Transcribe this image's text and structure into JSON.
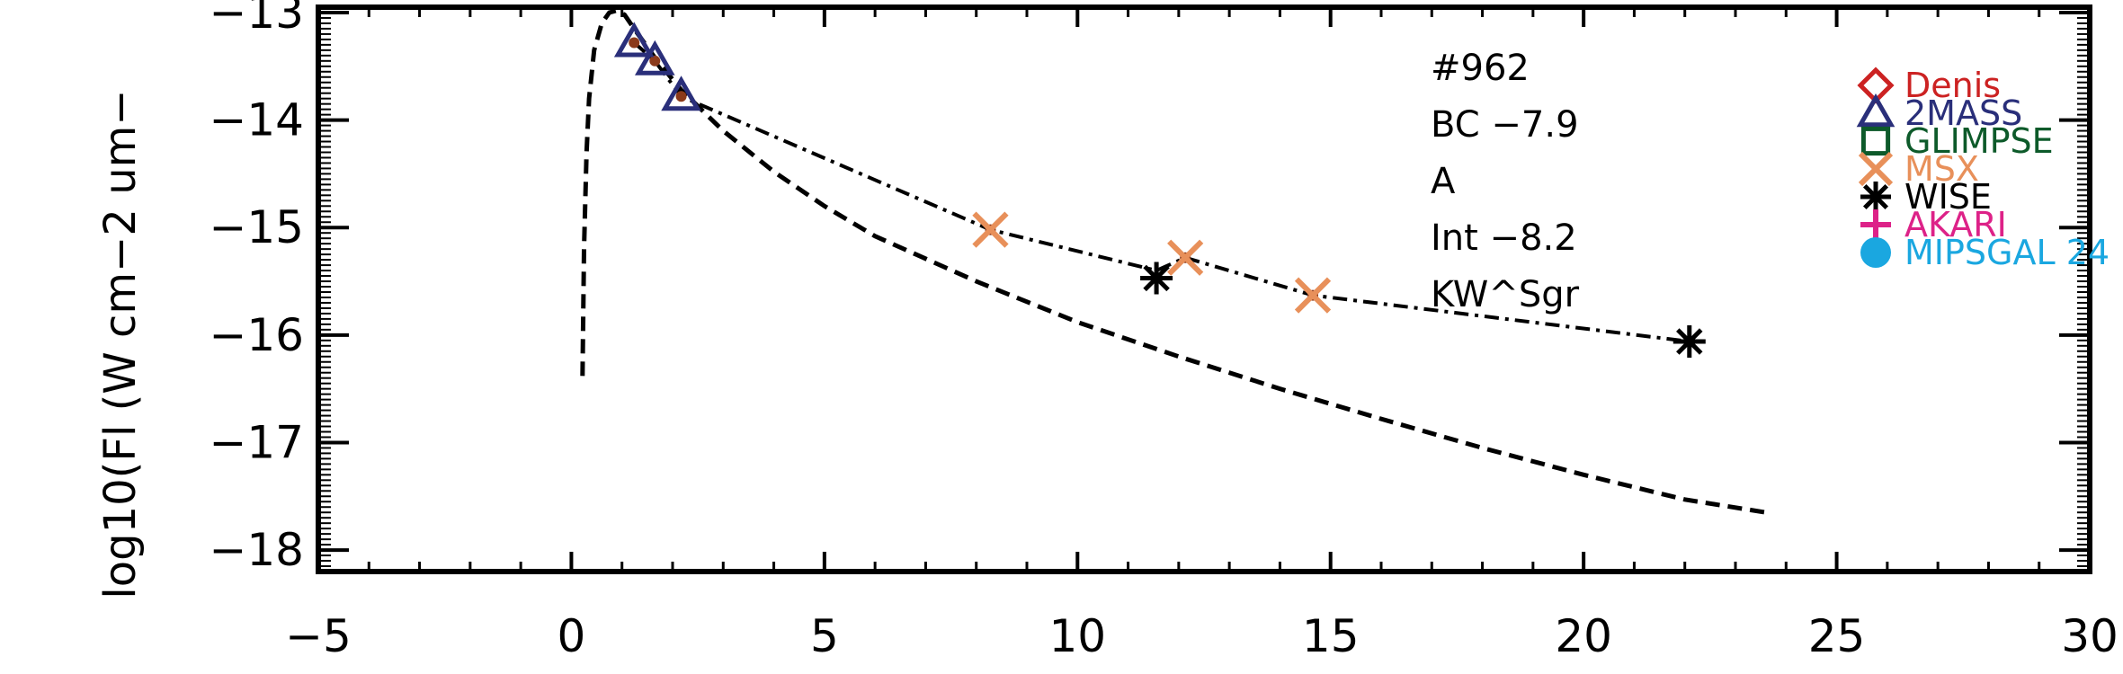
{
  "chart_data": {
    "type": "scatter",
    "ylabel": "log10(Fl (W cm−2 um−",
    "xlabel": "",
    "xlim": [
      -5,
      30
    ],
    "ylim": [
      -18.2,
      -12.95
    ],
    "xticks": [
      "−5",
      "0",
      "5",
      "10",
      "15",
      "20",
      "25",
      "30"
    ],
    "xtick_values": [
      -5,
      0,
      5,
      10,
      15,
      20,
      25,
      30
    ],
    "yticks": [
      "−13",
      "−14",
      "−15",
      "−16",
      "−17",
      "−18"
    ],
    "ytick_values": [
      -13,
      -14,
      -15,
      -16,
      -17,
      -18
    ],
    "annotations": [
      "#962",
      "BC −7.9",
      "A",
      "Int −8.2",
      "KW^Sgr"
    ],
    "legend": {
      "placement": "right",
      "entries": [
        {
          "label": "Denis",
          "marker": "diamond",
          "color": "#cc2222"
        },
        {
          "label": "2MASS",
          "marker": "triangle",
          "color": "#2a2f7a"
        },
        {
          "label": "GLIMPSE",
          "marker": "square",
          "color": "#0d5a2a"
        },
        {
          "label": "MSX",
          "marker": "x",
          "color": "#e8905a"
        },
        {
          "label": "WISE",
          "marker": "asterisk",
          "color": "#000000"
        },
        {
          "label": "AKARI",
          "marker": "plus",
          "color": "#dd2288"
        },
        {
          "label": "MIPSGAL 24",
          "marker": "circle",
          "color": "#1aa7e0"
        }
      ]
    },
    "series": [
      {
        "name": "2MASS",
        "marker": "triangle",
        "color": "#2a2f7a",
        "x": [
          1.24,
          1.65,
          2.17
        ],
        "y": [
          -13.28,
          -13.45,
          -13.78
        ]
      },
      {
        "name": "MSX",
        "marker": "x",
        "color": "#e8905a",
        "x": [
          8.28,
          12.13,
          14.65
        ],
        "y": [
          -15.02,
          -15.28,
          -15.63
        ]
      },
      {
        "name": "WISE",
        "marker": "asterisk",
        "color": "#000000",
        "x": [
          11.56,
          22.09
        ],
        "y": [
          -15.47,
          -16.06
        ]
      }
    ],
    "model_points": {
      "color": "#8b3a1a",
      "x": [
        1.24,
        1.65,
        2.17,
        8.28,
        11.56,
        12.13,
        14.65,
        22.09
      ],
      "y": [
        -13.28,
        -13.45,
        -13.78,
        -15.02,
        -15.47,
        -15.28,
        -15.63,
        -16.06
      ]
    },
    "fit_line": {
      "style": "dash-dot",
      "x": [
        1.24,
        1.65,
        2.17,
        8.28,
        11.56,
        12.13,
        14.65,
        22.09
      ],
      "y": [
        -13.28,
        -13.45,
        -13.78,
        -15.02,
        -15.4,
        -15.28,
        -15.63,
        -16.06
      ]
    },
    "blackbody_curve": {
      "style": "dashed",
      "x": [
        0.22,
        0.25,
        0.3,
        0.35,
        0.45,
        0.6,
        0.75,
        0.9,
        1.05,
        1.24,
        1.65,
        2.17,
        3,
        4,
        5,
        6,
        8,
        10,
        12,
        14,
        16,
        18,
        20,
        22,
        23.6
      ],
      "y": [
        -16.38,
        -15.2,
        -14.3,
        -13.8,
        -13.35,
        -13.1,
        -13.0,
        -12.98,
        -13.02,
        -13.15,
        -13.42,
        -13.72,
        -14.1,
        -14.48,
        -14.8,
        -15.08,
        -15.5,
        -15.88,
        -16.2,
        -16.5,
        -16.78,
        -17.05,
        -17.3,
        -17.53,
        -17.65
      ]
    }
  }
}
